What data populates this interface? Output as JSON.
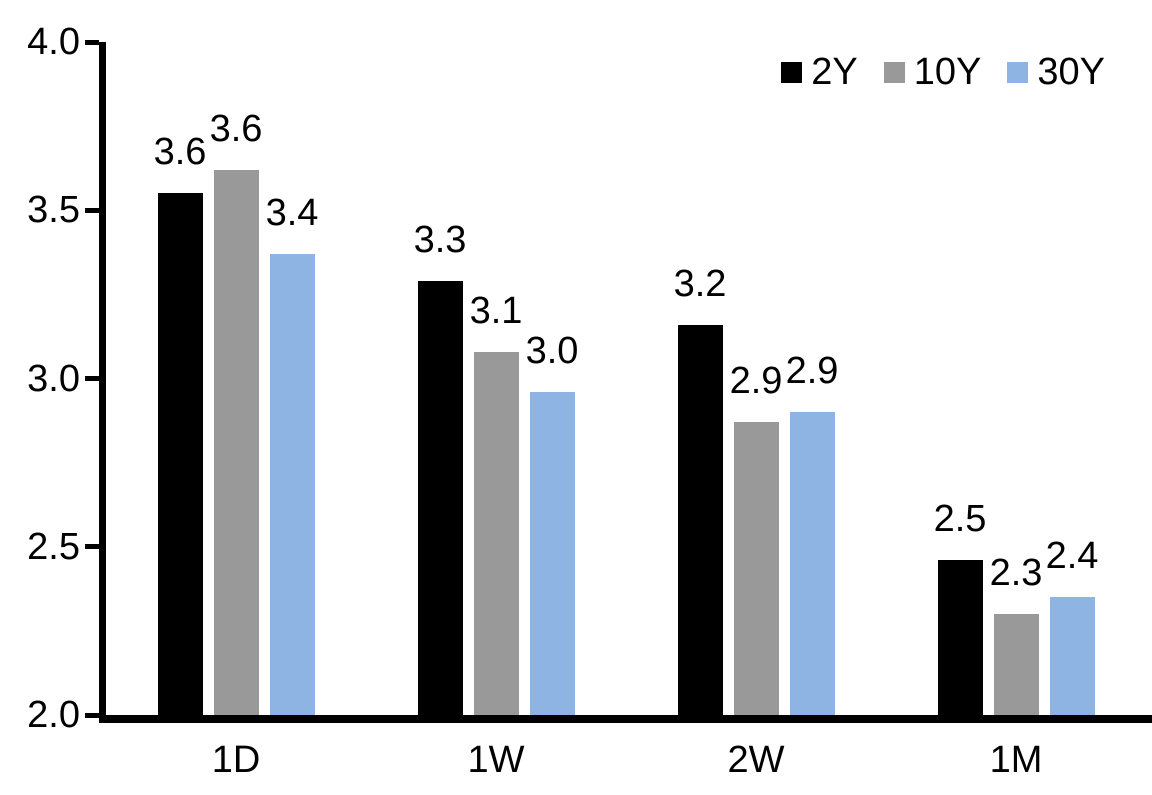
{
  "chart_data": {
    "type": "bar",
    "title": "",
    "xlabel": "",
    "ylabel": "",
    "categories": [
      "1D",
      "1W",
      "2W",
      "1M"
    ],
    "series": [
      {
        "name": "2Y",
        "color": "#000000",
        "values": [
          3.55,
          3.29,
          3.16,
          2.46
        ],
        "labels": [
          "3.6",
          "3.3",
          "3.2",
          "2.5"
        ]
      },
      {
        "name": "10Y",
        "color": "#999999",
        "values": [
          3.62,
          3.08,
          2.87,
          2.3
        ],
        "labels": [
          "3.6",
          "3.1",
          "2.9",
          "2.3"
        ]
      },
      {
        "name": "30Y",
        "color": "#8EB4E3",
        "values": [
          3.37,
          2.96,
          2.9,
          2.35
        ],
        "labels": [
          "3.4",
          "3.0",
          "2.9",
          "2.4"
        ]
      }
    ],
    "ylim": [
      2.0,
      4.0
    ],
    "yticks": [
      {
        "value": 4.0,
        "label": "4.0"
      },
      {
        "value": 3.5,
        "label": "3.5"
      },
      {
        "value": 3.0,
        "label": "3.0"
      },
      {
        "value": 2.5,
        "label": "2.5"
      },
      {
        "value": 2.0,
        "label": "2.0"
      }
    ],
    "grid": false,
    "legend_position": "top-right",
    "axis_color": "#000000",
    "text_color": "#000000",
    "background_color": "#FFFFFF"
  }
}
